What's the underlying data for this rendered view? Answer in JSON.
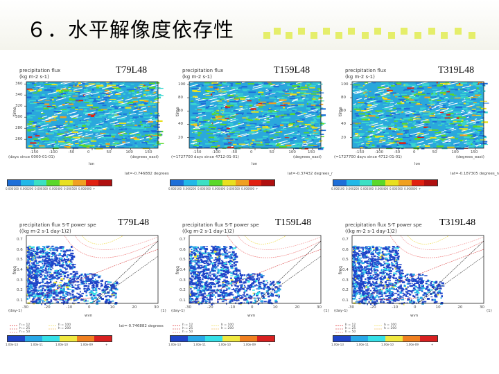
{
  "slide": {
    "title": "６．水平解像度依存性"
  },
  "resolutions": [
    "T79L48",
    "T159L48",
    "T319L48"
  ],
  "top_row": {
    "plot_title": "precipitation flux",
    "units": "(kg m-2 s-1)",
    "ylabel": "time",
    "xlabel": "lon",
    "x_ticks": [
      "-150",
      "-100",
      "-50",
      "0",
      "50",
      "100",
      "150"
    ],
    "x_unit": "(degrees_east)",
    "panels": [
      {
        "y_ticks": [
          "360",
          "340",
          "320",
          "300",
          "280",
          "260"
        ],
        "time_unit": "(days since 0000-01-01)",
        "footnote": "lat=-0.746882 degrees"
      },
      {
        "y_ticks": [
          "100",
          "80",
          "60",
          "40",
          "20"
        ],
        "time_unit": "(=1727700 days since 4712-01-01)",
        "footnote": "lat=-0.37432 degrees_nor"
      },
      {
        "y_ticks": [
          "100",
          "80",
          "60",
          "40",
          "20"
        ],
        "time_unit": "(=1727700 days since 4712-01-01)",
        "footnote": "lat=-0.187305 degrees_no"
      }
    ],
    "colorbar_labels": [
      "0.000100",
      "0.000200",
      "0.000300",
      "0.000400",
      "0.000500",
      "0.000600",
      "+"
    ],
    "colorbar_colors": [
      "#1e6fd8",
      "#22b8e8",
      "#3ce0c4",
      "#5ad82a",
      "#e8e020",
      "#f0a020",
      "#e02010",
      "#b01010"
    ]
  },
  "bottom_row": {
    "plot_title": "precipitation flux S-T power spe",
    "units": "((kg m-2 s-1 day-1)2)",
    "ylabel": "freq",
    "xlabel": "wvn",
    "y_ticks": [
      "0.7",
      "0.6",
      "0.5",
      "0.4",
      "0.3",
      "0.2",
      "0.1"
    ],
    "x_ticks": [
      "-30",
      "-20",
      "-10",
      "0",
      "10",
      "20",
      "30"
    ],
    "x_unit_left": "(day-1)",
    "x_unit_right": "(1)",
    "legend": [
      "h = 12",
      "h = 25",
      "h = 50",
      "h = 100",
      "h = 200"
    ],
    "footnotes": [
      "lat=-0.746882 degrees",
      "",
      ""
    ],
    "colorbar_labels": [
      "1.00e-13",
      "1.00e-11",
      "1.00e-10",
      "1.00e-09",
      "+"
    ],
    "colorbar_colors": [
      "#1f44c8",
      "#28a8e8",
      "#35e0e8",
      "#f0e840",
      "#f08020",
      "#d82020"
    ]
  }
}
